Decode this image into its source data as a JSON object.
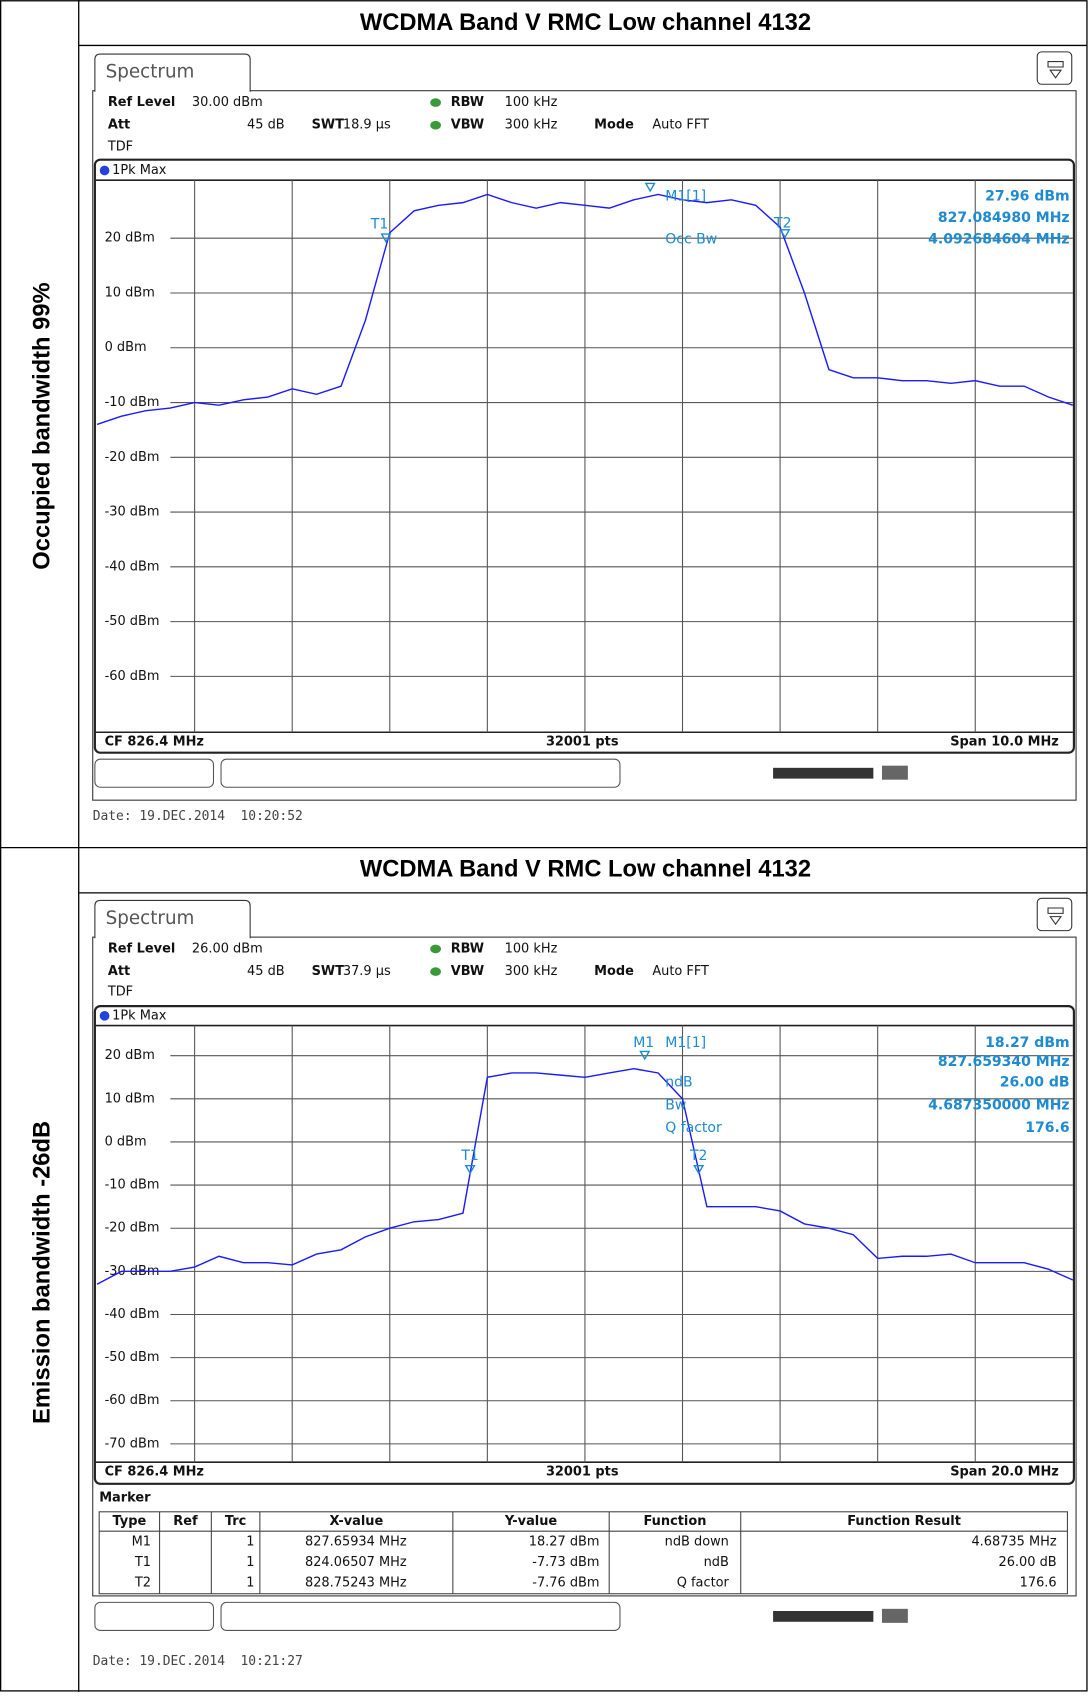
{
  "panels": [
    {
      "row_label": "Occupied bandwidth 99%",
      "title": "WCDMA Band V RMC Low channel 4132",
      "tab": "Spectrum",
      "ref_level_label": "Ref Level",
      "ref_level": "30.00 dBm",
      "att_label": "Att",
      "att": "45 dB",
      "tdf": "TDF",
      "swt_label": "SWT",
      "swt": "18.9 µs",
      "rbw_label": "RBW",
      "rbw": "100 kHz",
      "vbw_label": "VBW",
      "vbw": "300 kHz",
      "mode_label": "Mode",
      "mode": "Auto FFT",
      "trace_label": "1Pk Max",
      "ylim": [
        -70,
        30
      ],
      "yticks": [
        {
          "value": 20,
          "label": "20 dBm"
        },
        {
          "value": 10,
          "label": "10 dBm"
        },
        {
          "value": 0,
          "label": "0 dBm"
        },
        {
          "value": -10,
          "label": "-10 dBm"
        },
        {
          "value": -20,
          "label": "-20 dBm"
        },
        {
          "value": -30,
          "label": "-30 dBm"
        },
        {
          "value": -40,
          "label": "-40 dBm"
        },
        {
          "value": -50,
          "label": "-50 dBm"
        },
        {
          "value": -60,
          "label": "-60 dBm"
        }
      ],
      "trace": [
        -14,
        -12.5,
        -11.5,
        -11,
        -10,
        -10.5,
        -9.5,
        -9,
        -7.5,
        -8.5,
        -7,
        5,
        21,
        25,
        26,
        26.5,
        28,
        26.5,
        25.5,
        26.5,
        26,
        25.5,
        27,
        28,
        27,
        26.5,
        27,
        26,
        22,
        10,
        -4,
        -5.5,
        -5.5,
        -6,
        -6,
        -6.5,
        -6,
        -7,
        -7,
        -9,
        -10.5
      ],
      "marker_labels": [
        "T1",
        "M1[1]",
        "T2",
        "Occ Bw"
      ],
      "marker_results": [
        "27.96 dBm",
        "827.084980 MHz",
        "4.092684604 MHz"
      ],
      "cf": "CF 826.4 MHz",
      "points": "32001 pts",
      "span": "Span 10.0 MHz",
      "date": "Date: 19.DEC.2014  10:20:52"
    },
    {
      "row_label": "Emission bandwidth -26dB",
      "title": "WCDMA Band V RMC Low channel 4132",
      "tab": "Spectrum",
      "ref_level_label": "Ref Level",
      "ref_level": "26.00 dBm",
      "att_label": "Att",
      "att": "45 dB",
      "tdf": "TDF",
      "swt_label": "SWT",
      "swt": "37.9 µs",
      "rbw_label": "RBW",
      "rbw": "100 kHz",
      "vbw_label": "VBW",
      "vbw": "300 kHz",
      "mode_label": "Mode",
      "mode": "Auto FFT",
      "trace_label": "1Pk Max",
      "ylim": [
        -74,
        26
      ],
      "yticks": [
        {
          "value": 20,
          "label": "20 dBm"
        },
        {
          "value": 10,
          "label": "10 dBm"
        },
        {
          "value": 0,
          "label": "0 dBm"
        },
        {
          "value": -10,
          "label": "-10 dBm"
        },
        {
          "value": -20,
          "label": "-20 dBm"
        },
        {
          "value": -30,
          "label": "-30 dBm"
        },
        {
          "value": -40,
          "label": "-40 dBm"
        },
        {
          "value": -50,
          "label": "-50 dBm"
        },
        {
          "value": -60,
          "label": "-60 dBm"
        },
        {
          "value": -70,
          "label": "-70 dBm"
        }
      ],
      "trace": [
        -33,
        -30,
        -30,
        -30,
        -29,
        -26.5,
        -28,
        -28,
        -28.5,
        -26,
        -25,
        -22,
        -20,
        -18.5,
        -18,
        -16.5,
        15,
        16,
        16,
        15.5,
        15,
        16,
        17,
        16,
        10,
        -15,
        -15,
        -15,
        -16,
        -19,
        -20,
        -21.5,
        -27,
        -26.5,
        -26.5,
        -26,
        -28,
        -28,
        -28,
        -29.5,
        -32
      ],
      "marker_labels": [
        "M1",
        "M1[1]",
        "ndB",
        "Bw",
        "Q factor",
        "T1",
        "T2"
      ],
      "marker_results": [
        "18.27 dBm",
        "827.659340 MHz",
        "26.00 dB",
        "4.687350000 MHz",
        "176.6"
      ],
      "cf": "CF 826.4 MHz",
      "points": "32001 pts",
      "span": "Span 20.0 MHz",
      "marker_table": {
        "title": "Marker",
        "header": [
          "Type",
          "Ref",
          "Trc",
          "X-value",
          "Y-value",
          "Function",
          "Function Result"
        ],
        "rows": [
          [
            "M1",
            "",
            "1",
            "827.65934 MHz",
            "18.27 dBm",
            "ndB down",
            "4.68735 MHz"
          ],
          [
            "T1",
            "",
            "1",
            "824.06507 MHz",
            "-7.73 dBm",
            "ndB",
            "26.00 dB"
          ],
          [
            "T2",
            "",
            "1",
            "828.75243 MHz",
            "-7.76 dBm",
            "Q factor",
            "176.6"
          ]
        ]
      },
      "date": "Date: 19.DEC.2014  10:21:27"
    }
  ]
}
